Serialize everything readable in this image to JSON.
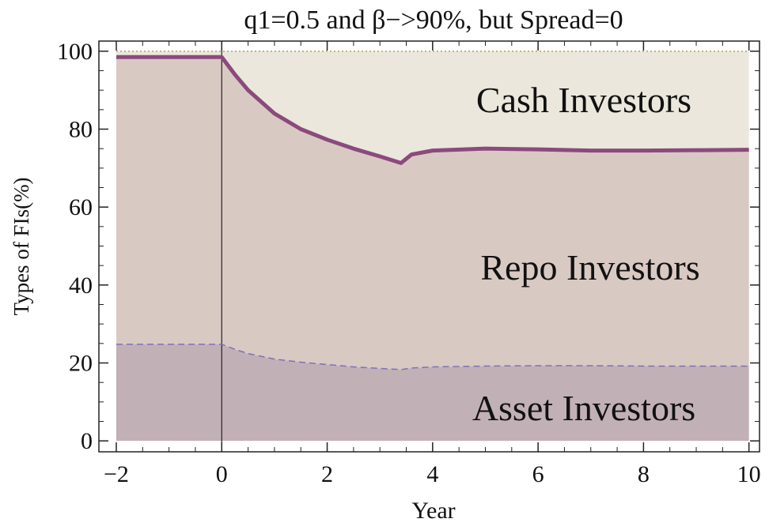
{
  "chart_data": {
    "type": "line",
    "title": "q1=0.5 and β−>90%, but Spread=0",
    "x_label": "Year",
    "y_label": "Types of FIs(%)",
    "annotations": [
      "Cash Investors",
      "Repo Investors",
      "Asset Investors"
    ],
    "x": [
      -2,
      -1,
      0,
      0.25,
      0.5,
      1,
      1.5,
      2,
      2.5,
      3,
      3.4,
      3.6,
      4,
      5,
      6,
      7,
      8,
      9,
      10
    ],
    "series": [
      {
        "color": "#8b4a7d",
        "values": [
          98.5,
          98.5,
          98.5,
          94,
          90,
          84,
          80,
          77.3,
          75,
          73,
          71.3,
          73.5,
          74.5,
          75,
          74.8,
          74.5,
          74.5,
          74.6,
          74.7
        ]
      },
      {
        "color": "#7d72b5",
        "values": [
          24.8,
          24.8,
          24.8,
          23.5,
          22.4,
          21,
          20.2,
          19.6,
          19,
          18.6,
          18.3,
          18.7,
          19,
          19.2,
          19.3,
          19.3,
          19.2,
          19.2,
          19.2
        ]
      }
    ],
    "fill_colors": [
      "#ebe7dc",
      "#d9c9c3",
      "#c2b0b7"
    ],
    "xlim": [
      -2.33,
      10.2
    ],
    "ylim": [
      -2.8,
      102.6
    ],
    "xticks": [
      {
        "value": -2,
        "label": "−2"
      },
      0,
      2,
      4,
      6,
      8,
      10
    ],
    "yticks": [
      0,
      20,
      40,
      60,
      80,
      100
    ],
    "vline": 0
  }
}
